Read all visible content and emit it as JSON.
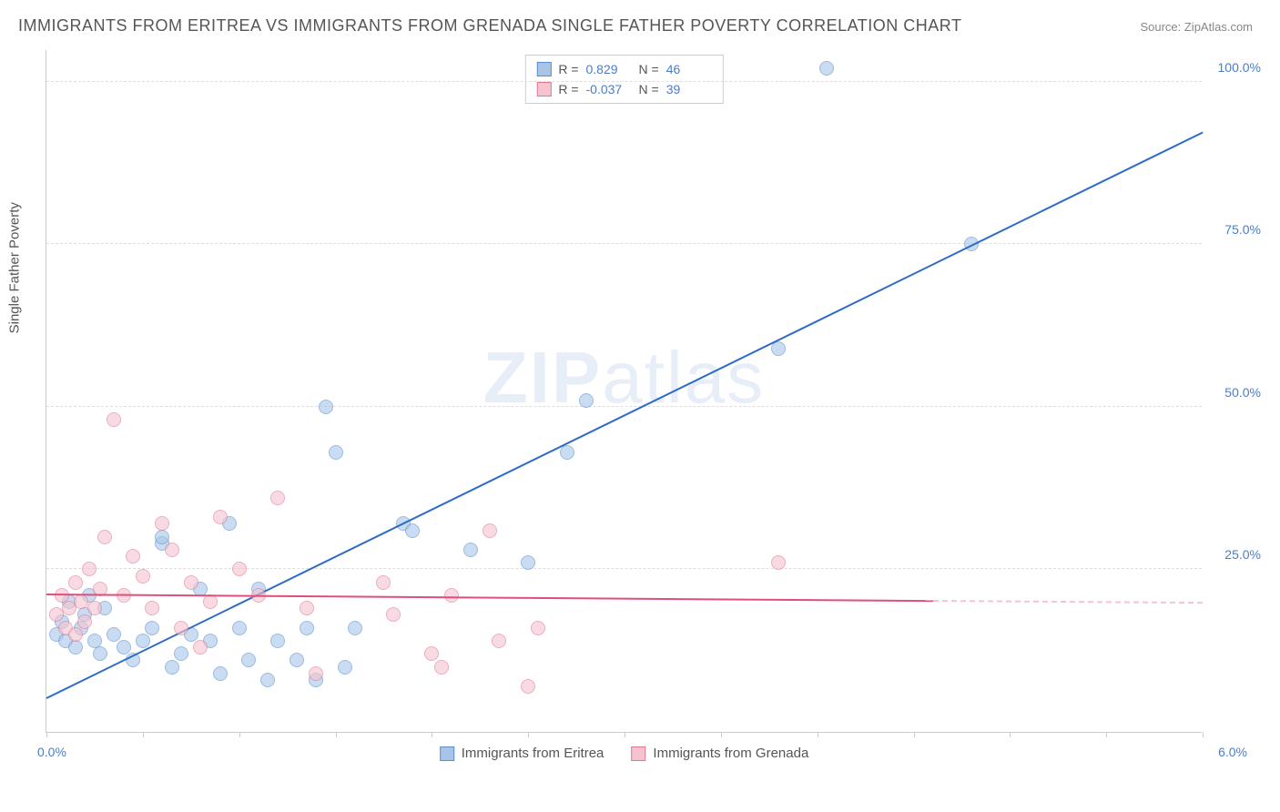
{
  "title": "IMMIGRANTS FROM ERITREA VS IMMIGRANTS FROM GRENADA SINGLE FATHER POVERTY CORRELATION CHART",
  "source": "Source: ZipAtlas.com",
  "y_axis_title": "Single Father Poverty",
  "watermark": "ZIPatlas",
  "chart": {
    "type": "scatter",
    "xlim": [
      0,
      6
    ],
    "ylim": [
      0,
      105
    ],
    "x_ticks": [
      0,
      0.5,
      1,
      1.5,
      2,
      2.5,
      3,
      3.5,
      4,
      4.5,
      5,
      5.5,
      6
    ],
    "x_label_min": "0.0%",
    "x_label_max": "6.0%",
    "y_gridlines": [
      25,
      50,
      75,
      100
    ],
    "y_tick_labels": [
      "25.0%",
      "50.0%",
      "75.0%",
      "100.0%"
    ],
    "background_color": "#ffffff",
    "grid_color": "#dddddd",
    "axis_color": "#cccccc",
    "tick_label_color": "#4a7ec9",
    "point_radius": 8,
    "point_opacity": 0.6
  },
  "series": [
    {
      "name": "Immigrants from Eritrea",
      "fill_color": "#a8c5e8",
      "stroke_color": "#5b8fd0",
      "line_color": "#2e6bc7",
      "R_label": "R =",
      "R_value": "0.829",
      "N_label": "N =",
      "N_value": "46",
      "trend": {
        "x1": 0,
        "y1": 5,
        "x2": 6.0,
        "y2": 92
      },
      "points": [
        [
          0.05,
          15
        ],
        [
          0.08,
          17
        ],
        [
          0.1,
          14
        ],
        [
          0.12,
          20
        ],
        [
          0.15,
          13
        ],
        [
          0.18,
          16
        ],
        [
          0.2,
          18
        ],
        [
          0.22,
          21
        ],
        [
          0.25,
          14
        ],
        [
          0.28,
          12
        ],
        [
          0.3,
          19
        ],
        [
          0.35,
          15
        ],
        [
          0.4,
          13
        ],
        [
          0.45,
          11
        ],
        [
          0.5,
          14
        ],
        [
          0.55,
          16
        ],
        [
          0.6,
          29
        ],
        [
          0.65,
          10
        ],
        [
          0.7,
          12
        ],
        [
          0.75,
          15
        ],
        [
          0.8,
          22
        ],
        [
          0.85,
          14
        ],
        [
          0.9,
          9
        ],
        [
          0.95,
          32
        ],
        [
          1.0,
          16
        ],
        [
          1.05,
          11
        ],
        [
          1.1,
          22
        ],
        [
          1.15,
          8
        ],
        [
          1.2,
          14
        ],
        [
          1.3,
          11
        ],
        [
          1.35,
          16
        ],
        [
          1.4,
          8
        ],
        [
          1.45,
          50
        ],
        [
          1.5,
          43
        ],
        [
          1.55,
          10
        ],
        [
          1.6,
          16
        ],
        [
          1.85,
          32
        ],
        [
          1.9,
          31
        ],
        [
          2.2,
          28
        ],
        [
          2.5,
          26
        ],
        [
          2.7,
          43
        ],
        [
          2.8,
          51
        ],
        [
          3.8,
          59
        ],
        [
          4.05,
          102
        ],
        [
          4.8,
          75
        ],
        [
          0.6,
          30
        ]
      ]
    },
    {
      "name": "Immigrants from Grenada",
      "fill_color": "#f5c4cf",
      "stroke_color": "#e07a94",
      "line_color": "#e04f7a",
      "R_label": "R =",
      "R_value": "-0.037",
      "N_label": "N =",
      "N_value": "39",
      "trend": {
        "x1": 0,
        "y1": 21,
        "x2": 4.6,
        "y2": 20
      },
      "trend_dash": {
        "x1": 4.6,
        "y1": 20,
        "x2": 6.0,
        "y2": 19.7
      },
      "points": [
        [
          0.05,
          18
        ],
        [
          0.08,
          21
        ],
        [
          0.1,
          16
        ],
        [
          0.12,
          19
        ],
        [
          0.15,
          23
        ],
        [
          0.18,
          20
        ],
        [
          0.2,
          17
        ],
        [
          0.22,
          25
        ],
        [
          0.25,
          19
        ],
        [
          0.28,
          22
        ],
        [
          0.3,
          30
        ],
        [
          0.35,
          48
        ],
        [
          0.4,
          21
        ],
        [
          0.45,
          27
        ],
        [
          0.5,
          24
        ],
        [
          0.55,
          19
        ],
        [
          0.6,
          32
        ],
        [
          0.65,
          28
        ],
        [
          0.7,
          16
        ],
        [
          0.75,
          23
        ],
        [
          0.8,
          13
        ],
        [
          0.85,
          20
        ],
        [
          0.9,
          33
        ],
        [
          1.0,
          25
        ],
        [
          1.1,
          21
        ],
        [
          1.2,
          36
        ],
        [
          1.35,
          19
        ],
        [
          1.4,
          9
        ],
        [
          1.75,
          23
        ],
        [
          1.8,
          18
        ],
        [
          2.0,
          12
        ],
        [
          2.05,
          10
        ],
        [
          2.1,
          21
        ],
        [
          2.3,
          31
        ],
        [
          2.35,
          14
        ],
        [
          2.5,
          7
        ],
        [
          2.55,
          16
        ],
        [
          3.8,
          26
        ],
        [
          0.15,
          15
        ]
      ]
    }
  ]
}
